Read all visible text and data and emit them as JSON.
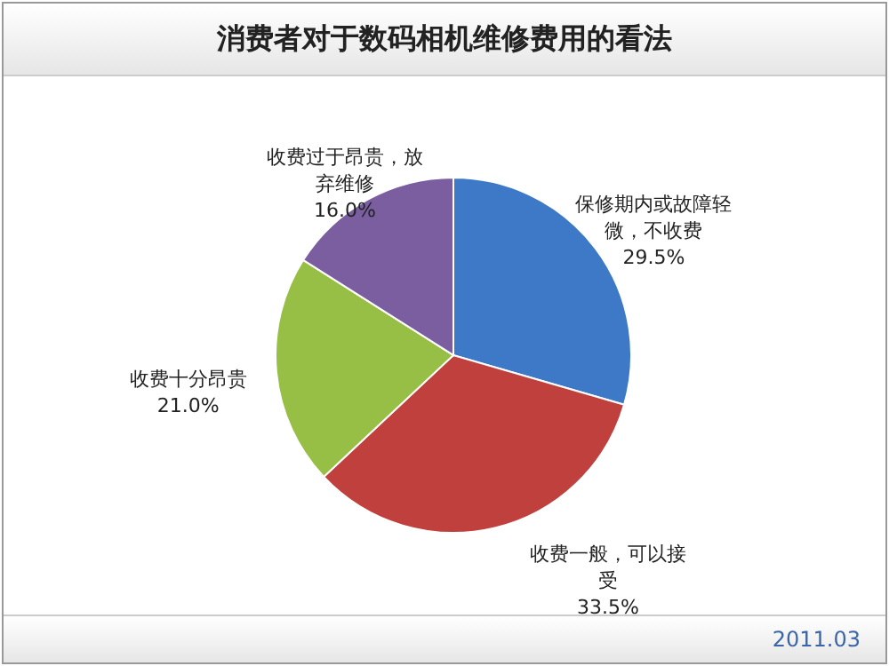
{
  "chart_data": {
    "type": "pie",
    "title": "消费者对于数码相机维修费用的看法",
    "categories": [
      "保修期内或故障轻微，不收费",
      "收费一般，可以接受",
      "收费十分昂贵",
      "收费过于昂贵，放弃维修"
    ],
    "values": [
      29.5,
      33.5,
      21.0,
      16.0
    ],
    "colors": [
      "#3d79c7",
      "#c0403d",
      "#98bf45",
      "#7a5ea0"
    ],
    "value_labels": [
      "29.5%",
      "33.5%",
      "21.0%",
      "16.0%"
    ],
    "annotations": [
      "2011.03"
    ],
    "legend": false
  }
}
